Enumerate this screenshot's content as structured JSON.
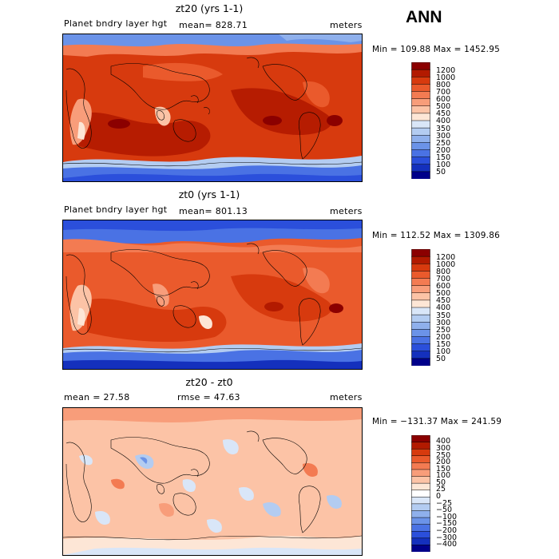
{
  "header": "ANN",
  "panels": [
    {
      "title": "zt20 (yrs 1-1)",
      "left_label": "Planet bndry layer hgt",
      "center_label": "mean= 828.71",
      "units": "meters",
      "minmax": "Min = 109.88 Max = 1452.95",
      "colorbar": {
        "labels": [
          "1200",
          "1000",
          "800",
          "700",
          "600",
          "500",
          "450",
          "400",
          "350",
          "300",
          "250",
          "200",
          "150",
          "100",
          "50"
        ],
        "colors": [
          "#8b0000",
          "#b21a00",
          "#d73a0e",
          "#ea5a2c",
          "#f37b52",
          "#f89d7a",
          "#fcc3a6",
          "#fde6d6",
          "#d9e6f8",
          "#b3ccf1",
          "#8fb0ec",
          "#6b93e8",
          "#4a72e4",
          "#2b4fdb",
          "#1430bd",
          "#00008a"
        ]
      }
    },
    {
      "title": "zt0 (yrs 1-1)",
      "left_label": "Planet bndry layer hgt",
      "center_label": "mean= 801.13",
      "units": "meters",
      "minmax": "Min = 112.52 Max = 1309.86",
      "colorbar": {
        "labels": [
          "1200",
          "1000",
          "800",
          "700",
          "600",
          "500",
          "450",
          "400",
          "350",
          "300",
          "250",
          "200",
          "150",
          "100",
          "50"
        ],
        "colors": [
          "#8b0000",
          "#b21a00",
          "#d73a0e",
          "#ea5a2c",
          "#f37b52",
          "#f89d7a",
          "#fcc3a6",
          "#fde6d6",
          "#d9e6f8",
          "#b3ccf1",
          "#8fb0ec",
          "#6b93e8",
          "#4a72e4",
          "#2b4fdb",
          "#1430bd",
          "#00008a"
        ]
      }
    },
    {
      "title": "zt20 - zt0",
      "left_label": "mean =   27.58",
      "center_label": "rmse =   47.63",
      "units": "meters",
      "minmax": "Min = −131.37 Max = 241.59",
      "colorbar": {
        "labels": [
          "400",
          "300",
          "250",
          "200",
          "150",
          "100",
          "50",
          "25",
          "0",
          "−25",
          "−50",
          "−100",
          "−150",
          "−200",
          "−300",
          "−400"
        ],
        "colors": [
          "#8b0000",
          "#b21a00",
          "#d73a0e",
          "#ea5a2c",
          "#f37b52",
          "#f89d7a",
          "#fcc3a6",
          "#fde6d6",
          "#ffffff",
          "#d9e6f8",
          "#b3ccf1",
          "#8fb0ec",
          "#6b93e8",
          "#4a72e4",
          "#2b4fdb",
          "#1430bd",
          "#00008a"
        ]
      }
    }
  ]
}
